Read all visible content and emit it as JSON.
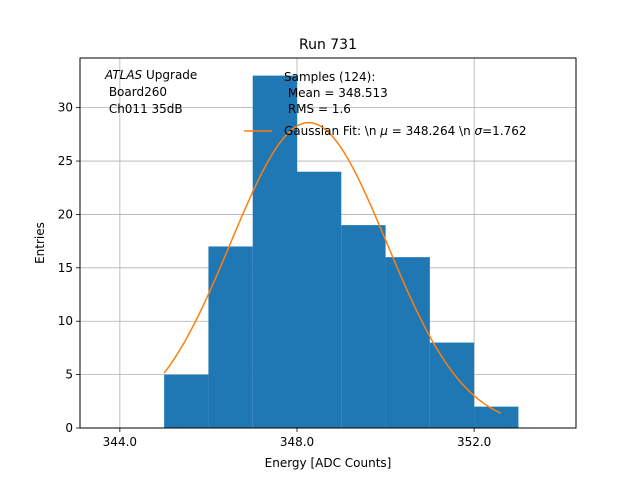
{
  "chart_data": {
    "type": "bar",
    "title": "Run 731",
    "xlabel": "Energy [ADC Counts]",
    "ylabel": "Entries",
    "xlim": [
      343.1,
      354.3
    ],
    "ylim": [
      0,
      34.65
    ],
    "xticks": [
      344.0,
      348.0,
      352.0
    ],
    "xtick_labels": [
      "344.0",
      "348.0",
      "352.0"
    ],
    "yticks": [
      0,
      5,
      10,
      15,
      20,
      25,
      30
    ],
    "ytick_labels": [
      "0",
      "5",
      "10",
      "15",
      "20",
      "25",
      "30"
    ],
    "grid": true,
    "bar_color": "#1f77b4",
    "fit_color": "#ff7f0e",
    "bins": [
      {
        "x0": 345.0,
        "x1": 346.0,
        "count": 5
      },
      {
        "x0": 346.0,
        "x1": 347.0,
        "count": 17
      },
      {
        "x0": 347.0,
        "x1": 348.0,
        "count": 33
      },
      {
        "x0": 348.0,
        "x1": 349.0,
        "count": 24
      },
      {
        "x0": 349.0,
        "x1": 350.0,
        "count": 19
      },
      {
        "x0": 350.0,
        "x1": 351.0,
        "count": 16
      },
      {
        "x0": 351.0,
        "x1": 352.0,
        "count": 8
      },
      {
        "x0": 352.0,
        "x1": 353.0,
        "count": 2
      }
    ],
    "fit": {
      "mu": 348.264,
      "sigma": 1.762,
      "amplitude": 28.6,
      "x_range": [
        345.0,
        352.6
      ]
    },
    "annotation": {
      "line1_italic": "ATLAS",
      "line1_rest": " Upgrade",
      "line2": " Board260",
      "line3": " Ch011 35dB"
    },
    "legend": {
      "placement": "top-right",
      "samples_line1": "Samples (124):",
      "samples_line2": " Mean = 348.513",
      "samples_line3": " RMS = 1.6",
      "fit_label_prefix": "Gaussian Fit: \\n ",
      "fit_mu_symbol": "μ",
      "fit_label_mid": " = 348.264 \\n ",
      "fit_sigma_symbol": "σ",
      "fit_label_suffix": "=1.762"
    }
  }
}
